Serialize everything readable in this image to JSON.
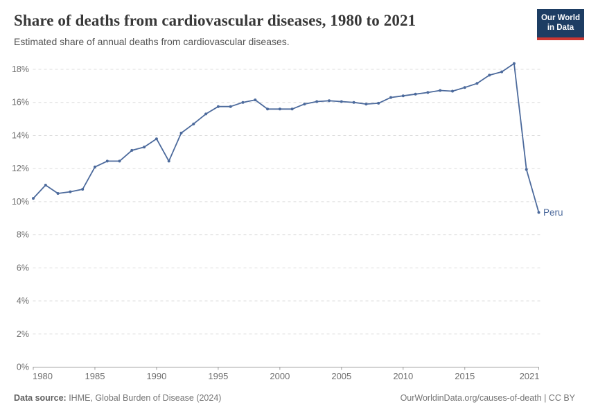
{
  "header": {
    "logo": {
      "line1": "Our World",
      "line2": "in Data"
    }
  },
  "footer": {
    "source_label": "Data source:",
    "source_text": " IHME, Global Burden of Disease (2024)",
    "right_text": "OurWorldinData.org/causes-of-death | CC BY"
  },
  "chart_data": {
    "type": "line",
    "title": "Share of deaths from cardiovascular diseases, 1980 to 2021",
    "subtitle": "Estimated share of annual deaths from cardiovascular diseases.",
    "xlabel": "",
    "ylabel": "",
    "xlim": [
      1980,
      2021
    ],
    "ylim": [
      0,
      18.5
    ],
    "yticks": [
      0,
      2,
      4,
      6,
      8,
      10,
      12,
      14,
      16,
      18
    ],
    "ytick_suffix": "%",
    "xticks": [
      1980,
      1985,
      1990,
      1995,
      2000,
      2005,
      2010,
      2015,
      2021
    ],
    "grid": "horizontal-dashed",
    "legend_position": "end-of-line-label",
    "line_color": "#4C6A9C",
    "grid_color": "#dcdcdc",
    "axis_color": "#9e9e9e",
    "tick_label_color": "#6e6e6e",
    "series": [
      {
        "name": "Peru",
        "x": [
          1980,
          1981,
          1982,
          1983,
          1984,
          1985,
          1986,
          1987,
          1988,
          1989,
          1990,
          1991,
          1992,
          1993,
          1994,
          1995,
          1996,
          1997,
          1998,
          1999,
          2000,
          2001,
          2002,
          2003,
          2004,
          2005,
          2006,
          2007,
          2008,
          2009,
          2010,
          2011,
          2012,
          2013,
          2014,
          2015,
          2016,
          2017,
          2018,
          2019,
          2020,
          2021
        ],
        "values": [
          10.2,
          11.0,
          10.5,
          10.6,
          10.75,
          12.1,
          12.45,
          12.45,
          13.1,
          13.3,
          13.8,
          12.45,
          14.15,
          14.7,
          15.3,
          15.75,
          15.75,
          16.0,
          16.15,
          15.6,
          15.6,
          15.6,
          15.9,
          16.05,
          16.1,
          16.05,
          16.0,
          15.9,
          15.95,
          16.3,
          16.4,
          16.5,
          16.6,
          16.72,
          16.68,
          16.9,
          17.15,
          17.65,
          17.85,
          18.35,
          11.95,
          9.35
        ]
      }
    ]
  }
}
